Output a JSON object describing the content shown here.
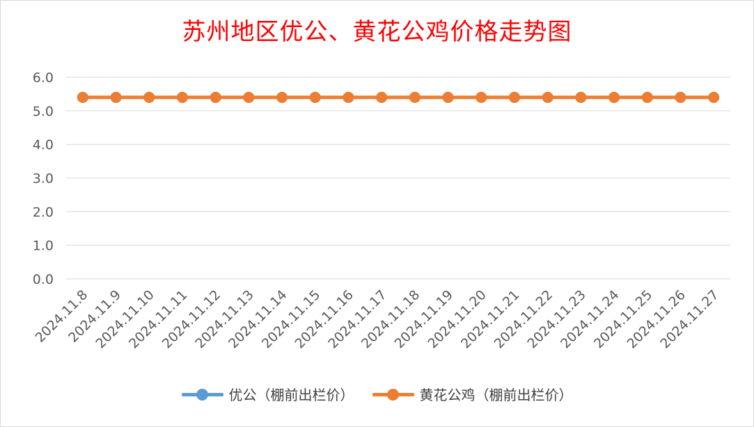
{
  "chart_data": {
    "type": "line",
    "title": "苏州地区优公、黄花公鸡价格走势图",
    "categories": [
      "2024.11.8",
      "2024.11.9",
      "2024.11.10",
      "2024.11.11",
      "2024.11.12",
      "2024.11.13",
      "2024.11.14",
      "2024.11.15",
      "2024.11.16",
      "2024.11.17",
      "2024.11.18",
      "2024.11.19",
      "2024.11.20",
      "2024.11.21",
      "2024.11.22",
      "2024.11.23",
      "2024.11.24",
      "2024.11.25",
      "2024.11.26",
      "2024.11.27"
    ],
    "ylim": [
      0,
      6
    ],
    "yticks": [
      "0.0",
      "1.0",
      "2.0",
      "3.0",
      "4.0",
      "5.0",
      "6.0"
    ],
    "grid": true,
    "legend_position": "bottom",
    "series": [
      {
        "name": "优公（棚前出栏价）",
        "color": "#5b9bd5",
        "values": [
          5.4,
          5.4,
          5.4,
          5.4,
          5.4,
          5.4,
          5.4,
          5.4,
          5.4,
          5.4,
          5.4,
          5.4,
          5.4,
          5.4,
          5.4,
          5.4,
          5.4,
          5.4,
          5.4,
          5.4
        ]
      },
      {
        "name": "黄花公鸡（棚前出栏价）",
        "color": "#ed7d31",
        "values": [
          5.4,
          5.4,
          5.4,
          5.4,
          5.4,
          5.4,
          5.4,
          5.4,
          5.4,
          5.4,
          5.4,
          5.4,
          5.4,
          5.4,
          5.4,
          5.4,
          5.4,
          5.4,
          5.4,
          5.4
        ]
      }
    ]
  }
}
